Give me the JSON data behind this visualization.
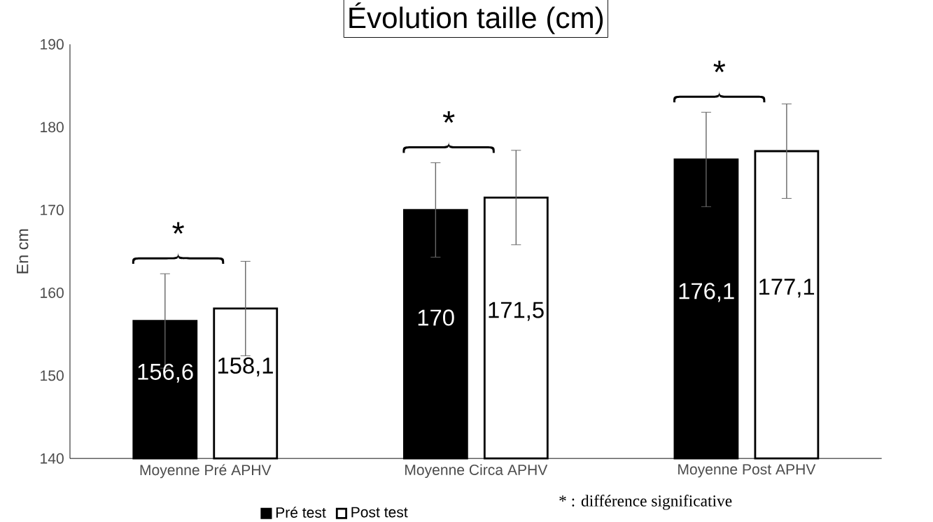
{
  "chart_data": {
    "type": "bar",
    "title": "Évolution taille (cm)",
    "ylabel": "En cm",
    "categories": [
      "Moyenne Pré APHV",
      "Moyenne Circa APHV",
      "Moyenne Post APHV"
    ],
    "series": [
      {
        "name": "Pré test",
        "color": "#000000",
        "values": [
          156.6,
          170,
          176.1
        ],
        "value_labels": [
          "156,6",
          "170",
          "176,1"
        ],
        "errors": [
          5.7,
          5.7,
          5.7
        ]
      },
      {
        "name": "Post test",
        "color": "#ffffff",
        "values": [
          158.1,
          171.5,
          177.1
        ],
        "value_labels": [
          "158,1",
          "171,5",
          "177,1"
        ],
        "errors": [
          5.7,
          5.7,
          5.7
        ]
      }
    ],
    "ylim": [
      140,
      190
    ],
    "yticks": [
      140,
      150,
      160,
      170,
      180,
      190
    ],
    "legend": "bottom",
    "annotations": [
      "*",
      "*",
      "*",
      "* : différence significative"
    ]
  }
}
